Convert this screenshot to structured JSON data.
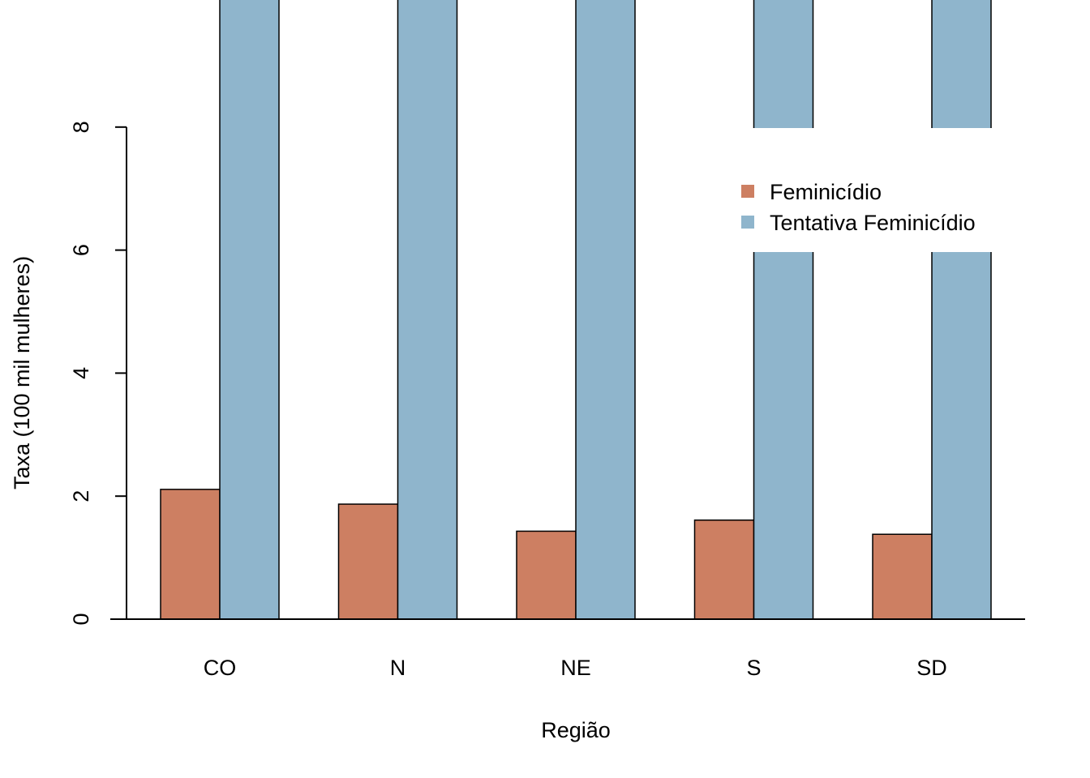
{
  "chart_data": {
    "type": "bar",
    "categories": [
      "CO",
      "N",
      "NE",
      "S",
      "SD"
    ],
    "series": [
      {
        "name": "Feminicídio",
        "color": "#CD7F62",
        "values": [
          2.11,
          1.87,
          1.43,
          1.61,
          1.38
        ]
      },
      {
        "name": "Tentativa Feminicídio",
        "color": "#8FB5CC",
        "values": [
          10.5,
          10.5,
          10.5,
          10.5,
          10.5
        ]
      }
    ],
    "xlabel": "Região",
    "ylabel": "Taxa (100 mil mulheres)",
    "ylim": [
      0,
      10
    ],
    "yticks": [
      0,
      2,
      4,
      6,
      8
    ],
    "grid": false,
    "legend_position": "top-right"
  }
}
